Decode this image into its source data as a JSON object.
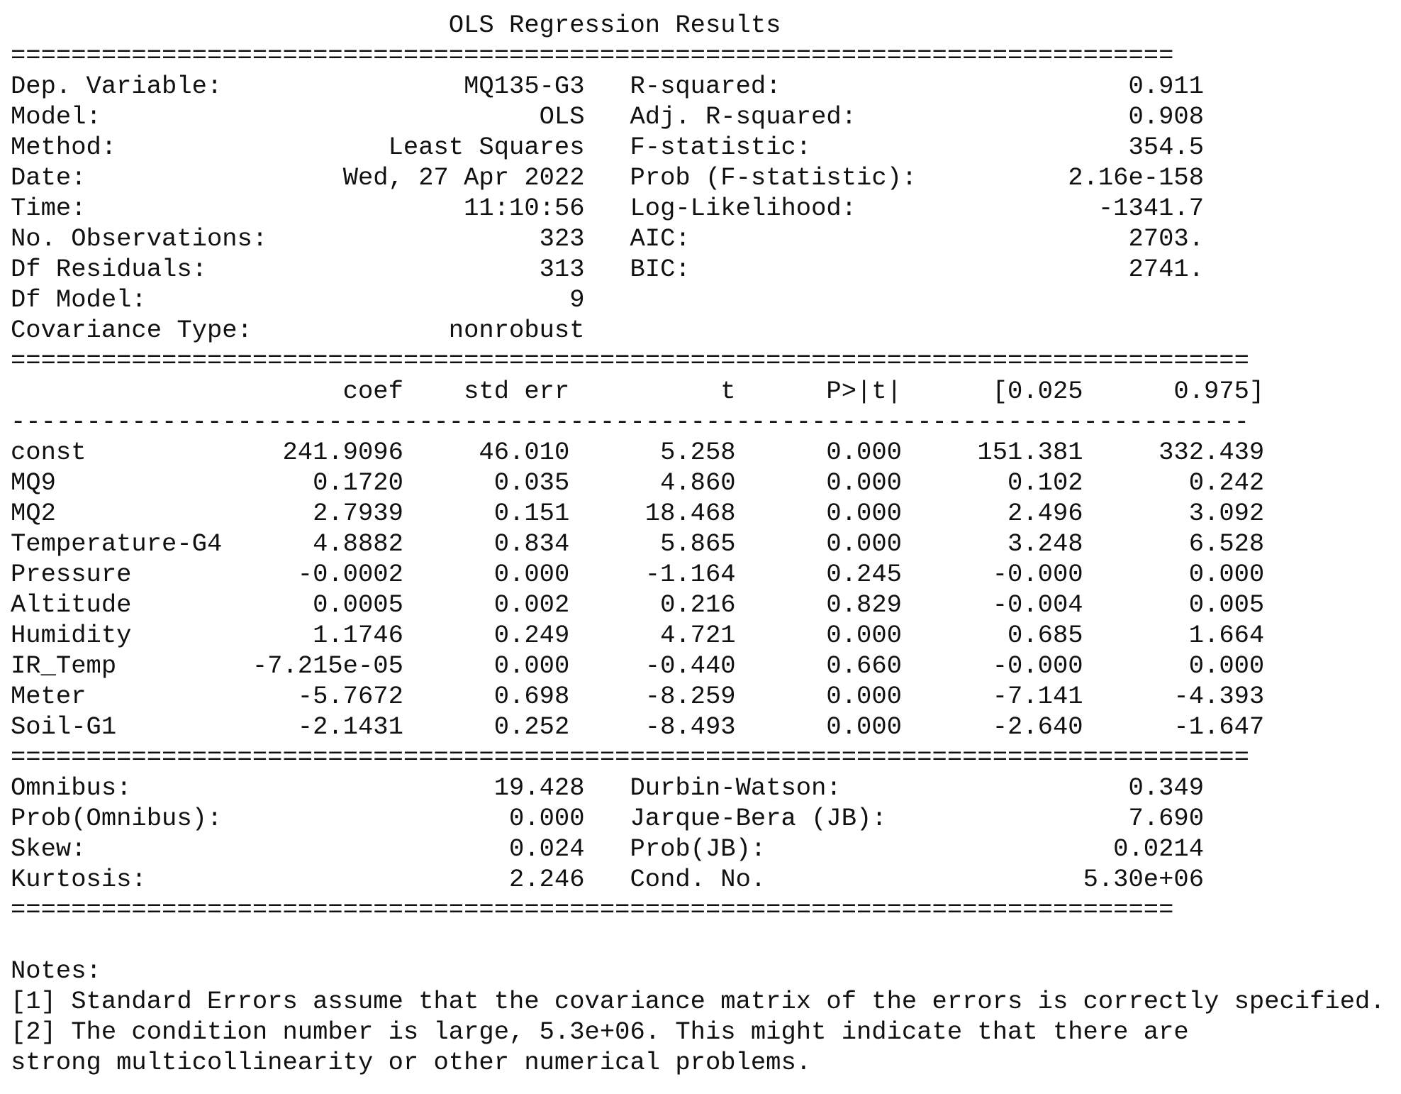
{
  "title": "OLS Regression Results",
  "separators": {
    "double_short": "=============================================================================",
    "double_long": "==================================================================================",
    "single_long": "----------------------------------------------------------------------------------"
  },
  "model_summary": {
    "left": [
      {
        "label": "Dep. Variable:",
        "value": "MQ135-G3"
      },
      {
        "label": "Model:",
        "value": "OLS"
      },
      {
        "label": "Method:",
        "value": "Least Squares"
      },
      {
        "label": "Date:",
        "value": "Wed, 27 Apr 2022"
      },
      {
        "label": "Time:",
        "value": "11:10:56"
      },
      {
        "label": "No. Observations:",
        "value": "323"
      },
      {
        "label": "Df Residuals:",
        "value": "313"
      },
      {
        "label": "Df Model:",
        "value": "9"
      },
      {
        "label": "Covariance Type:",
        "value": "nonrobust"
      }
    ],
    "right": [
      {
        "label": "R-squared:",
        "value": "0.911"
      },
      {
        "label": "Adj. R-squared:",
        "value": "0.908"
      },
      {
        "label": "F-statistic:",
        "value": "354.5"
      },
      {
        "label": "Prob (F-statistic):",
        "value": "2.16e-158"
      },
      {
        "label": "Log-Likelihood:",
        "value": "-1341.7"
      },
      {
        "label": "AIC:",
        "value": "2703."
      },
      {
        "label": "BIC:",
        "value": "2741."
      }
    ]
  },
  "coefficients": {
    "columns": [
      "coef",
      "std err",
      "t",
      "P>|t|",
      "[0.025",
      "0.975]"
    ],
    "rows": [
      {
        "name": "const",
        "values": [
          "241.9096",
          "46.010",
          "5.258",
          "0.000",
          "151.381",
          "332.439"
        ]
      },
      {
        "name": "MQ9",
        "values": [
          "0.1720",
          "0.035",
          "4.860",
          "0.000",
          "0.102",
          "0.242"
        ]
      },
      {
        "name": "MQ2",
        "values": [
          "2.7939",
          "0.151",
          "18.468",
          "0.000",
          "2.496",
          "3.092"
        ]
      },
      {
        "name": "Temperature-G4",
        "values": [
          "4.8882",
          "0.834",
          "5.865",
          "0.000",
          "3.248",
          "6.528"
        ]
      },
      {
        "name": "Pressure",
        "values": [
          "-0.0002",
          "0.000",
          "-1.164",
          "0.245",
          "-0.000",
          "0.000"
        ]
      },
      {
        "name": "Altitude",
        "values": [
          "0.0005",
          "0.002",
          "0.216",
          "0.829",
          "-0.004",
          "0.005"
        ]
      },
      {
        "name": "Humidity",
        "values": [
          "1.1746",
          "0.249",
          "4.721",
          "0.000",
          "0.685",
          "1.664"
        ]
      },
      {
        "name": "IR_Temp",
        "values": [
          "-7.215e-05",
          "0.000",
          "-0.440",
          "0.660",
          "-0.000",
          "0.000"
        ]
      },
      {
        "name": "Meter",
        "values": [
          "-5.7672",
          "0.698",
          "-8.259",
          "0.000",
          "-7.141",
          "-4.393"
        ]
      },
      {
        "name": "Soil-G1",
        "values": [
          "-2.1431",
          "0.252",
          "-8.493",
          "0.000",
          "-2.640",
          "-1.647"
        ]
      }
    ]
  },
  "diagnostics": {
    "left": [
      {
        "label": "Omnibus:",
        "value": "19.428"
      },
      {
        "label": "Prob(Omnibus):",
        "value": "0.000"
      },
      {
        "label": "Skew:",
        "value": "0.024"
      },
      {
        "label": "Kurtosis:",
        "value": "2.246"
      }
    ],
    "right": [
      {
        "label": "Durbin-Watson:",
        "value": "0.349"
      },
      {
        "label": "Jarque-Bera (JB):",
        "value": "7.690"
      },
      {
        "label": "Prob(JB):",
        "value": "0.0214"
      },
      {
        "label": "Cond. No.",
        "value": "5.30e+06"
      }
    ]
  },
  "notes": {
    "heading": "Notes:",
    "lines": [
      "[1] Standard Errors assume that the covariance matrix of the errors is correctly specified.",
      "[2] The condition number is large, 5.3e+06. This might indicate that there are",
      "strong multicollinearity or other numerical problems."
    ]
  }
}
